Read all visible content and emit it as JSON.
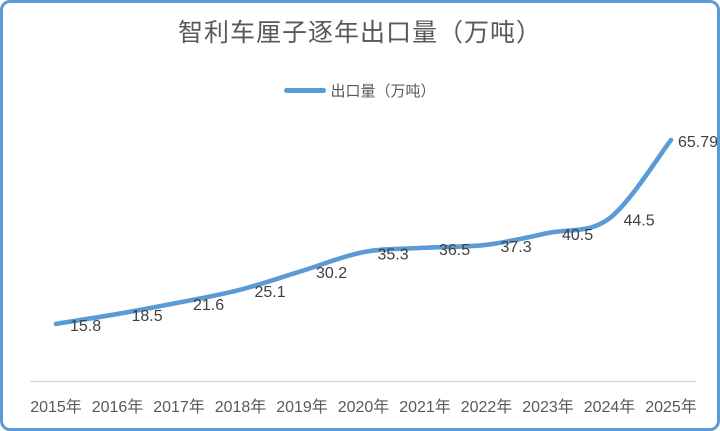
{
  "card": {
    "title": "智利车厘子逐年出口量（万吨）",
    "legend_label": "出口量（万吨）"
  },
  "colors": {
    "line": "#5B9BD5",
    "border": "#5B9BD5",
    "title_text": "#595959",
    "axis_text": "#595959",
    "data_label_text": "#404040",
    "axis_line": "#D9D9D9",
    "background": "#FFFFFF"
  },
  "chart_data": {
    "type": "line",
    "title": "智利车厘子逐年出口量（万吨）",
    "categories": [
      "2015年",
      "2016年",
      "2017年",
      "2018年",
      "2019年",
      "2020年",
      "2021年",
      "2022年",
      "2023年",
      "2024年",
      "2025年"
    ],
    "series": [
      {
        "name": "出口量（万吨）",
        "values": [
          15.8,
          18.5,
          21.6,
          25.1,
          30.2,
          35.3,
          36.5,
          37.3,
          40.5,
          44.5,
          65.79
        ]
      }
    ],
    "xlabel": "",
    "ylabel": "",
    "ylim": [
      0,
      66
    ],
    "grid": false,
    "y_axis_visible": false,
    "legend_position": "top",
    "smooth": true,
    "data_labels": true
  }
}
